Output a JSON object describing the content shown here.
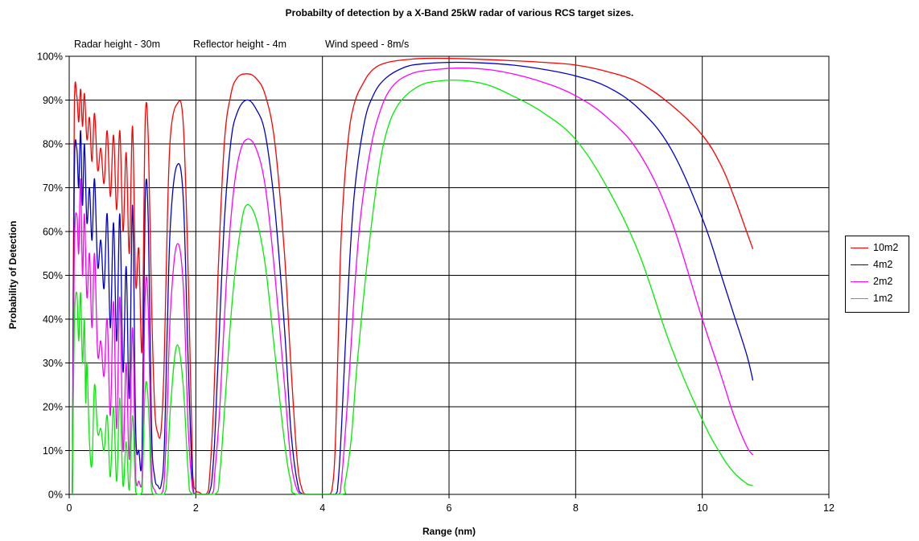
{
  "chart_data": {
    "type": "line",
    "title": "Probabilty of detection by a X-Band 25kW radar of various RCS target sizes.",
    "annotations": [
      "Radar height - 30m",
      "Reflector height - 4m",
      "Wind speed - 8m/s"
    ],
    "xlabel": "Range (nm)",
    "ylabel": "Probability of Detection",
    "xlim": [
      0,
      12
    ],
    "ylim": [
      0,
      100
    ],
    "x_ticks": [
      "0",
      "2",
      "4",
      "6",
      "8",
      "10",
      "12"
    ],
    "y_ticks": [
      "0%",
      "10%",
      "20%",
      "30%",
      "40%",
      "50%",
      "60%",
      "70%",
      "80%",
      "90%",
      "100%"
    ],
    "grid": true,
    "legend_position": "right",
    "series": [
      {
        "name": "10m2",
        "color": "#ff0000",
        "points": [
          [
            0.05,
            0
          ],
          [
            0.08,
            87
          ],
          [
            0.12,
            91
          ],
          [
            0.15,
            85
          ],
          [
            0.18,
            92.5
          ],
          [
            0.21,
            84
          ],
          [
            0.24,
            91.5
          ],
          [
            0.28,
            81
          ],
          [
            0.32,
            86
          ],
          [
            0.36,
            76
          ],
          [
            0.4,
            87
          ],
          [
            0.45,
            74
          ],
          [
            0.5,
            79
          ],
          [
            0.55,
            71
          ],
          [
            0.6,
            83
          ],
          [
            0.65,
            68
          ],
          [
            0.7,
            82
          ],
          [
            0.75,
            65
          ],
          [
            0.8,
            83
          ],
          [
            0.85,
            60
          ],
          [
            0.9,
            78
          ],
          [
            0.95,
            55
          ],
          [
            1.0,
            84
          ],
          [
            1.05,
            48
          ],
          [
            1.1,
            56
          ],
          [
            1.15,
            33
          ],
          [
            1.2,
            85
          ],
          [
            1.25,
            81
          ],
          [
            1.3,
            44
          ],
          [
            1.35,
            20
          ],
          [
            1.4,
            14
          ],
          [
            1.45,
            14.5
          ],
          [
            1.5,
            30
          ],
          [
            1.55,
            62
          ],
          [
            1.6,
            82
          ],
          [
            1.7,
            89
          ],
          [
            1.8,
            85
          ],
          [
            1.88,
            50
          ],
          [
            1.95,
            5
          ],
          [
            2.0,
            1
          ],
          [
            2.05,
            0.5
          ],
          [
            2.1,
            0
          ],
          [
            2.15,
            0
          ],
          [
            2.2,
            1
          ],
          [
            2.28,
            20
          ],
          [
            2.35,
            50
          ],
          [
            2.45,
            80
          ],
          [
            2.55,
            91
          ],
          [
            2.65,
            95
          ],
          [
            2.8,
            96
          ],
          [
            2.95,
            95
          ],
          [
            3.1,
            91
          ],
          [
            3.25,
            80
          ],
          [
            3.4,
            55
          ],
          [
            3.5,
            30
          ],
          [
            3.6,
            8
          ],
          [
            3.68,
            1
          ],
          [
            3.75,
            0
          ],
          [
            3.9,
            0
          ],
          [
            4.0,
            0
          ],
          [
            4.1,
            0
          ],
          [
            4.15,
            1
          ],
          [
            4.2,
            10
          ],
          [
            4.25,
            35
          ],
          [
            4.3,
            60
          ],
          [
            4.4,
            80
          ],
          [
            4.5,
            89
          ],
          [
            4.65,
            94
          ],
          [
            4.8,
            97
          ],
          [
            5.0,
            98.5
          ],
          [
            5.3,
            99.2
          ],
          [
            5.6,
            99.5
          ],
          [
            6.0,
            99.5
          ],
          [
            6.5,
            99.3
          ],
          [
            7.0,
            99.0
          ],
          [
            7.5,
            98.6
          ],
          [
            8.0,
            98
          ],
          [
            8.5,
            96.5
          ],
          [
            9.0,
            94
          ],
          [
            9.5,
            89
          ],
          [
            10.0,
            82
          ],
          [
            10.3,
            75
          ],
          [
            10.5,
            68
          ],
          [
            10.7,
            60
          ],
          [
            10.8,
            56
          ]
        ]
      },
      {
        "name": "4m2",
        "color": "#0000cc",
        "points": [
          [
            0.05,
            0
          ],
          [
            0.08,
            72
          ],
          [
            0.12,
            79
          ],
          [
            0.15,
            70
          ],
          [
            0.18,
            83
          ],
          [
            0.21,
            66
          ],
          [
            0.24,
            80
          ],
          [
            0.28,
            62
          ],
          [
            0.32,
            70
          ],
          [
            0.36,
            58
          ],
          [
            0.4,
            72
          ],
          [
            0.45,
            52
          ],
          [
            0.5,
            58
          ],
          [
            0.55,
            47
          ],
          [
            0.6,
            64
          ],
          [
            0.65,
            38
          ],
          [
            0.7,
            62
          ],
          [
            0.75,
            35
          ],
          [
            0.8,
            64
          ],
          [
            0.85,
            28
          ],
          [
            0.9,
            52
          ],
          [
            0.95,
            22
          ],
          [
            1.0,
            66
          ],
          [
            1.05,
            15
          ],
          [
            1.1,
            10
          ],
          [
            1.15,
            10
          ],
          [
            1.2,
            67
          ],
          [
            1.25,
            62
          ],
          [
            1.3,
            15
          ],
          [
            1.35,
            4
          ],
          [
            1.4,
            2
          ],
          [
            1.45,
            2
          ],
          [
            1.5,
            10
          ],
          [
            1.55,
            38
          ],
          [
            1.6,
            62
          ],
          [
            1.7,
            75
          ],
          [
            1.8,
            68
          ],
          [
            1.88,
            30
          ],
          [
            1.95,
            2
          ],
          [
            2.0,
            0
          ],
          [
            2.2,
            0
          ],
          [
            2.28,
            8
          ],
          [
            2.35,
            30
          ],
          [
            2.45,
            62
          ],
          [
            2.55,
            80
          ],
          [
            2.65,
            87
          ],
          [
            2.8,
            90
          ],
          [
            2.95,
            88
          ],
          [
            3.1,
            82
          ],
          [
            3.25,
            65
          ],
          [
            3.4,
            38
          ],
          [
            3.5,
            15
          ],
          [
            3.6,
            3
          ],
          [
            3.7,
            0
          ],
          [
            4.0,
            0
          ],
          [
            4.2,
            0
          ],
          [
            4.25,
            3
          ],
          [
            4.3,
            15
          ],
          [
            4.4,
            45
          ],
          [
            4.5,
            68
          ],
          [
            4.65,
            84
          ],
          [
            4.8,
            91
          ],
          [
            5.0,
            95
          ],
          [
            5.3,
            97.5
          ],
          [
            5.6,
            98.3
          ],
          [
            6.0,
            98.6
          ],
          [
            6.5,
            98.5
          ],
          [
            7.0,
            98.0
          ],
          [
            7.5,
            97
          ],
          [
            8.0,
            95.5
          ],
          [
            8.5,
            93
          ],
          [
            9.0,
            88
          ],
          [
            9.5,
            79
          ],
          [
            10.0,
            63
          ],
          [
            10.3,
            50
          ],
          [
            10.5,
            41
          ],
          [
            10.7,
            32
          ],
          [
            10.8,
            26
          ]
        ]
      },
      {
        "name": "2m2",
        "color": "#ff00ff",
        "points": [
          [
            0.05,
            0
          ],
          [
            0.08,
            55
          ],
          [
            0.12,
            64
          ],
          [
            0.15,
            55
          ],
          [
            0.18,
            72
          ],
          [
            0.21,
            50
          ],
          [
            0.24,
            64
          ],
          [
            0.28,
            45
          ],
          [
            0.32,
            55
          ],
          [
            0.36,
            38
          ],
          [
            0.4,
            55
          ],
          [
            0.45,
            32
          ],
          [
            0.5,
            35
          ],
          [
            0.55,
            27
          ],
          [
            0.6,
            40
          ],
          [
            0.65,
            18
          ],
          [
            0.7,
            44
          ],
          [
            0.75,
            15
          ],
          [
            0.8,
            45
          ],
          [
            0.85,
            10
          ],
          [
            0.9,
            30
          ],
          [
            0.95,
            8
          ],
          [
            1.0,
            38
          ],
          [
            1.05,
            4
          ],
          [
            1.1,
            3
          ],
          [
            1.15,
            3
          ],
          [
            1.2,
            46
          ],
          [
            1.25,
            42
          ],
          [
            1.3,
            5
          ],
          [
            1.35,
            1
          ],
          [
            1.4,
            0
          ],
          [
            1.45,
            0
          ],
          [
            1.5,
            3
          ],
          [
            1.55,
            20
          ],
          [
            1.6,
            42
          ],
          [
            1.7,
            57
          ],
          [
            1.8,
            48
          ],
          [
            1.88,
            15
          ],
          [
            1.95,
            1
          ],
          [
            2.0,
            0
          ],
          [
            2.25,
            0
          ],
          [
            2.3,
            5
          ],
          [
            2.38,
            20
          ],
          [
            2.48,
            48
          ],
          [
            2.58,
            67
          ],
          [
            2.68,
            77
          ],
          [
            2.8,
            81
          ],
          [
            2.95,
            79
          ],
          [
            3.1,
            70
          ],
          [
            3.25,
            50
          ],
          [
            3.4,
            25
          ],
          [
            3.5,
            8
          ],
          [
            3.6,
            1
          ],
          [
            3.7,
            0
          ],
          [
            4.0,
            0
          ],
          [
            4.25,
            0
          ],
          [
            4.3,
            3
          ],
          [
            4.4,
            22
          ],
          [
            4.5,
            45
          ],
          [
            4.6,
            63
          ],
          [
            4.75,
            78
          ],
          [
            4.9,
            87
          ],
          [
            5.1,
            93
          ],
          [
            5.4,
            96
          ],
          [
            5.8,
            97
          ],
          [
            6.2,
            97.3
          ],
          [
            6.6,
            97
          ],
          [
            7.0,
            96
          ],
          [
            7.5,
            94
          ],
          [
            8.0,
            91
          ],
          [
            8.5,
            86
          ],
          [
            9.0,
            78
          ],
          [
            9.5,
            63
          ],
          [
            10.0,
            40
          ],
          [
            10.3,
            27
          ],
          [
            10.5,
            18
          ],
          [
            10.7,
            11
          ],
          [
            10.8,
            9
          ]
        ]
      },
      {
        "name": "1m2",
        "color": "#00ee00",
        "points": [
          [
            0.05,
            0
          ],
          [
            0.08,
            38
          ],
          [
            0.12,
            46
          ],
          [
            0.15,
            35
          ],
          [
            0.18,
            46
          ],
          [
            0.21,
            30
          ],
          [
            0.24,
            40
          ],
          [
            0.26,
            21
          ],
          [
            0.28,
            30
          ],
          [
            0.32,
            12
          ],
          [
            0.36,
            7
          ],
          [
            0.4,
            25
          ],
          [
            0.45,
            14
          ],
          [
            0.5,
            15
          ],
          [
            0.55,
            10
          ],
          [
            0.6,
            18
          ],
          [
            0.65,
            4
          ],
          [
            0.7,
            20
          ],
          [
            0.75,
            3
          ],
          [
            0.8,
            22
          ],
          [
            0.85,
            2
          ],
          [
            0.9,
            12
          ],
          [
            0.95,
            1
          ],
          [
            1.0,
            18
          ],
          [
            1.05,
            0.5
          ],
          [
            1.1,
            0
          ],
          [
            1.15,
            0.5
          ],
          [
            1.2,
            24
          ],
          [
            1.25,
            21
          ],
          [
            1.3,
            1
          ],
          [
            1.35,
            0
          ],
          [
            1.5,
            0
          ],
          [
            1.55,
            5
          ],
          [
            1.6,
            20
          ],
          [
            1.7,
            34
          ],
          [
            1.8,
            25
          ],
          [
            1.88,
            5
          ],
          [
            1.95,
            0
          ],
          [
            2.3,
            0
          ],
          [
            2.38,
            5
          ],
          [
            2.48,
            25
          ],
          [
            2.58,
            45
          ],
          [
            2.7,
            60
          ],
          [
            2.8,
            66
          ],
          [
            2.95,
            63
          ],
          [
            3.1,
            52
          ],
          [
            3.25,
            32
          ],
          [
            3.4,
            12
          ],
          [
            3.5,
            3
          ],
          [
            3.6,
            0
          ],
          [
            4.3,
            0
          ],
          [
            4.35,
            2
          ],
          [
            4.45,
            12
          ],
          [
            4.55,
            30
          ],
          [
            4.7,
            52
          ],
          [
            4.85,
            70
          ],
          [
            5.0,
            82
          ],
          [
            5.2,
            89
          ],
          [
            5.5,
            93
          ],
          [
            5.8,
            94.3
          ],
          [
            6.2,
            94.5
          ],
          [
            6.6,
            93.5
          ],
          [
            7.0,
            91
          ],
          [
            7.5,
            87
          ],
          [
            8.0,
            81
          ],
          [
            8.5,
            70
          ],
          [
            9.0,
            55
          ],
          [
            9.5,
            34
          ],
          [
            10.0,
            17
          ],
          [
            10.3,
            9
          ],
          [
            10.5,
            5
          ],
          [
            10.7,
            2.5
          ],
          [
            10.8,
            2
          ]
        ]
      }
    ]
  }
}
